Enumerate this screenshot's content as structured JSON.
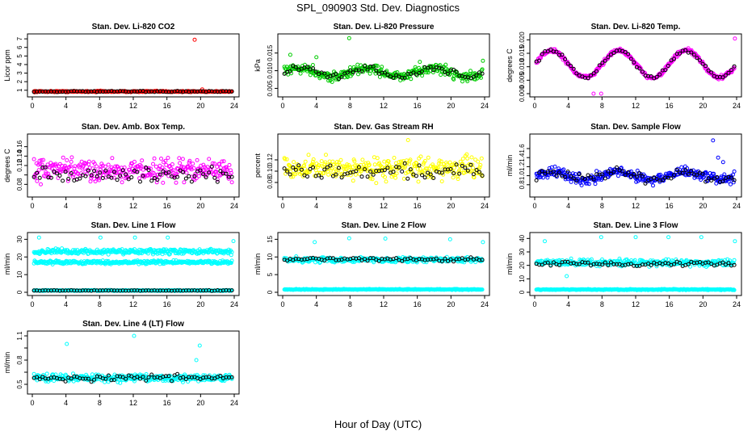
{
  "page": {
    "title": "SPL_090903  Std. Dev. Diagnostics",
    "xlabel": "Hour of Day (UTC)"
  },
  "chart_data": [
    {
      "type": "scatter",
      "title": "Stan. Dev. Li-820 CO2",
      "ylabel": "Licor ppm",
      "xlim": [
        0,
        24
      ],
      "ylim": [
        0.6,
        7.2
      ],
      "xticks": [
        0,
        4,
        8,
        12,
        16,
        20,
        24
      ],
      "yticks": [
        1,
        2,
        3,
        4,
        5,
        6,
        7
      ],
      "ytick_labels": [
        "1",
        "2",
        "3",
        "4",
        "5",
        "6",
        "7"
      ],
      "series": [
        {
          "color": "#ff0000",
          "base": 0.85,
          "noise": 0.06,
          "outliers": [
            [
              19.3,
              6.9
            ],
            [
              20.2,
              1.1
            ],
            [
              8.1,
              0.95
            ]
          ]
        },
        {
          "color": "#000000",
          "base": 0.85,
          "noise": 0.05,
          "sparse": true
        }
      ]
    },
    {
      "type": "scatter",
      "title": "Stan. Dev. Li-820 Pressure",
      "ylabel": "kPa",
      "xlim": [
        0,
        24
      ],
      "ylim": [
        0.0035,
        0.0195
      ],
      "xticks": [
        0,
        4,
        8,
        12,
        16,
        20,
        24
      ],
      "yticks": [
        0.005,
        0.01,
        0.015
      ],
      "ytick_labels": [
        "0.005",
        "0.010",
        "0.015"
      ],
      "series": [
        {
          "color": "#00cc00",
          "base": 0.0095,
          "noise": 0.0012,
          "wave": 0.0012,
          "outliers": [
            [
              7.9,
              0.0192
            ],
            [
              4.0,
              0.0138
            ],
            [
              0.9,
              0.0145
            ],
            [
              16.3,
              0.0125
            ],
            [
              23.8,
              0.0128
            ]
          ]
        },
        {
          "color": "#000000",
          "base": 0.0095,
          "noise": 0.0008,
          "wave": 0.0012,
          "sparse": true
        }
      ]
    },
    {
      "type": "scatter",
      "title": "Stan. Dev. Li-820 Temp.",
      "ylabel": "degrees C",
      "xlim": [
        0,
        24
      ],
      "ylim": [
        0,
        0.021
      ],
      "xticks": [
        0,
        4,
        8,
        12,
        16,
        20,
        24
      ],
      "yticks": [
        0,
        0.005,
        0.01,
        0.015,
        0.02
      ],
      "ytick_labels": [
        "0.000",
        "0.005",
        "0.010",
        "0.015",
        "0.020"
      ],
      "series": [
        {
          "color": "#ff00ff",
          "base": 0.011,
          "noise": 0.0007,
          "wave": 0.005,
          "outliers": [
            [
              7.0,
              0.0
            ],
            [
              7.9,
              0.0
            ],
            [
              23.8,
              0.0205
            ]
          ]
        },
        {
          "color": "#000000",
          "base": 0.011,
          "noise": 0.0006,
          "wave": 0.005,
          "sparse": true
        }
      ]
    },
    {
      "type": "scatter",
      "title": "Stan. Dev. Amb. Box Temp.",
      "ylabel": "degrees C",
      "xlim": [
        0,
        24
      ],
      "ylim": [
        0.06,
        0.18
      ],
      "xticks": [
        0,
        4,
        8,
        12,
        16,
        20,
        24
      ],
      "yticks": [
        0.08,
        0.1,
        0.12,
        0.14,
        0.16
      ],
      "ytick_labels": [
        "0.08",
        "",
        "0.12",
        "0.14",
        "0.16"
      ],
      "series": [
        {
          "color": "#ff00ff",
          "base": 0.11,
          "noise": 0.02,
          "outliers": []
        },
        {
          "color": "#000000",
          "base": 0.1,
          "noise": 0.012,
          "sparse": true
        }
      ]
    },
    {
      "type": "scatter",
      "title": "Stan. Dev. Gas Stream RH",
      "ylabel": "percent",
      "xlim": [
        0,
        24
      ],
      "ylim": [
        0.06,
        0.16
      ],
      "xticks": [
        0,
        4,
        8,
        12,
        16,
        20,
        24
      ],
      "yticks": [
        0.08,
        0.1,
        0.12
      ],
      "ytick_labels": [
        "0.08",
        "0.10",
        "0.12"
      ],
      "series": [
        {
          "color": "#ffff00",
          "base": 0.105,
          "noise": 0.016,
          "outliers": [
            [
              14.9,
              0.155
            ]
          ]
        },
        {
          "color": "#000000",
          "base": 0.1,
          "noise": 0.012,
          "sparse": true
        }
      ]
    },
    {
      "type": "scatter",
      "title": "Stan. Dev. Sample Flow",
      "ylabel": "ml/min",
      "xlim": [
        0,
        24
      ],
      "ylim": [
        0.6,
        1.85
      ],
      "xticks": [
        0,
        4,
        8,
        12,
        16,
        20,
        24
      ],
      "yticks": [
        0.8,
        1.0,
        1.2,
        1.4,
        1.6
      ],
      "ytick_labels": [
        "0.8",
        "1.0",
        "1.2",
        "1.4",
        "1.6"
      ],
      "series": [
        {
          "color": "#0000ff",
          "base": 1.0,
          "noise": 0.1,
          "wave": 0.08,
          "outliers": [
            [
              21.2,
              1.78
            ],
            [
              21.8,
              1.4
            ],
            [
              22.4,
              1.3
            ]
          ]
        },
        {
          "color": "#000000",
          "base": 1.0,
          "noise": 0.08,
          "wave": 0.08,
          "sparse": true
        }
      ]
    },
    {
      "type": "scatter",
      "title": "Stan. Dev. Line 1 Flow",
      "ylabel": "ml/min",
      "xlim": [
        0,
        24
      ],
      "ylim": [
        0,
        32
      ],
      "xticks": [
        0,
        4,
        8,
        12,
        16,
        20,
        24
      ],
      "yticks": [
        0,
        10,
        20,
        30
      ],
      "ytick_labels": [
        "0",
        "10",
        "20",
        "30"
      ],
      "series": [
        {
          "color": "#00ffff",
          "base": 23,
          "noise": 1.2,
          "outliers": [
            [
              0.8,
              31
            ],
            [
              8.1,
              31
            ],
            [
              12.2,
              31
            ],
            [
              16.1,
              31
            ],
            [
              23.9,
              29
            ]
          ]
        },
        {
          "color": "#00ffff",
          "base": 17,
          "noise": 0.8,
          "outliers": []
        },
        {
          "color": "#00ffff",
          "base": 1.0,
          "noise": 0.2,
          "outliers": []
        },
        {
          "color": "#000000",
          "base": 1.0,
          "noise": 0.15,
          "sparse": true
        }
      ]
    },
    {
      "type": "scatter",
      "title": "Stan. Dev. Line 2 Flow",
      "ylabel": "ml/min",
      "xlim": [
        0,
        24
      ],
      "ylim": [
        0,
        16
      ],
      "xticks": [
        0,
        4,
        8,
        12,
        16,
        20,
        24
      ],
      "yticks": [
        0,
        5,
        10,
        15
      ],
      "ytick_labels": [
        "0",
        "5",
        "10",
        "15"
      ],
      "series": [
        {
          "color": "#00ffff",
          "base": 9.2,
          "noise": 0.6,
          "outliers": [
            [
              3.8,
              14.2
            ],
            [
              7.9,
              15.3
            ],
            [
              12.2,
              15.2
            ],
            [
              19.9,
              15.0
            ],
            [
              23.8,
              14.2
            ]
          ]
        },
        {
          "color": "#00ffff",
          "base": 0.8,
          "noise": 0.1,
          "outliers": []
        },
        {
          "color": "#000000",
          "base": 9.3,
          "noise": 0.4,
          "sparse": true
        }
      ]
    },
    {
      "type": "scatter",
      "title": "Stan. Dev. Line 3 Flow",
      "ylabel": "ml/min",
      "xlim": [
        0,
        24
      ],
      "ylim": [
        0,
        42
      ],
      "xticks": [
        0,
        4,
        8,
        12,
        16,
        20,
        24
      ],
      "yticks": [
        0,
        10,
        20,
        30,
        40
      ],
      "ytick_labels": [
        "0",
        "10",
        "20",
        "30",
        "40"
      ],
      "series": [
        {
          "color": "#00ffff",
          "base": 22,
          "noise": 2.2,
          "outliers": [
            [
              1.2,
              38
            ],
            [
              7.9,
              41
            ],
            [
              12.0,
              41
            ],
            [
              15.9,
              41
            ],
            [
              19.8,
              41
            ],
            [
              23.8,
              38
            ],
            [
              3.8,
              12
            ]
          ]
        },
        {
          "color": "#00ffff",
          "base": 2.0,
          "noise": 0.3,
          "outliers": []
        },
        {
          "color": "#000000",
          "base": 21,
          "noise": 1.4,
          "sparse": true
        }
      ]
    },
    {
      "type": "scatter",
      "title": "Stan. Dev. Line 4 (LT) Flow",
      "ylabel": "ml/min",
      "xlim": [
        0,
        24
      ],
      "ylim": [
        0.42,
        1.12
      ],
      "xticks": [
        0,
        4,
        8,
        12,
        16,
        20,
        24
      ],
      "yticks": [
        0.5,
        0.65,
        0.8,
        0.95,
        1.1
      ],
      "ytick_labels": [
        "0.5",
        "",
        "0.8",
        "",
        "1.1"
      ],
      "series": [
        {
          "color": "#00ffff",
          "base": 0.58,
          "noise": 0.04,
          "outliers": [
            [
              4.1,
              1.0
            ],
            [
              12.1,
              1.1
            ],
            [
              19.9,
              0.98
            ],
            [
              19.5,
              0.8
            ]
          ]
        },
        {
          "color": "#000000",
          "base": 0.58,
          "noise": 0.035,
          "sparse": true
        }
      ]
    }
  ]
}
